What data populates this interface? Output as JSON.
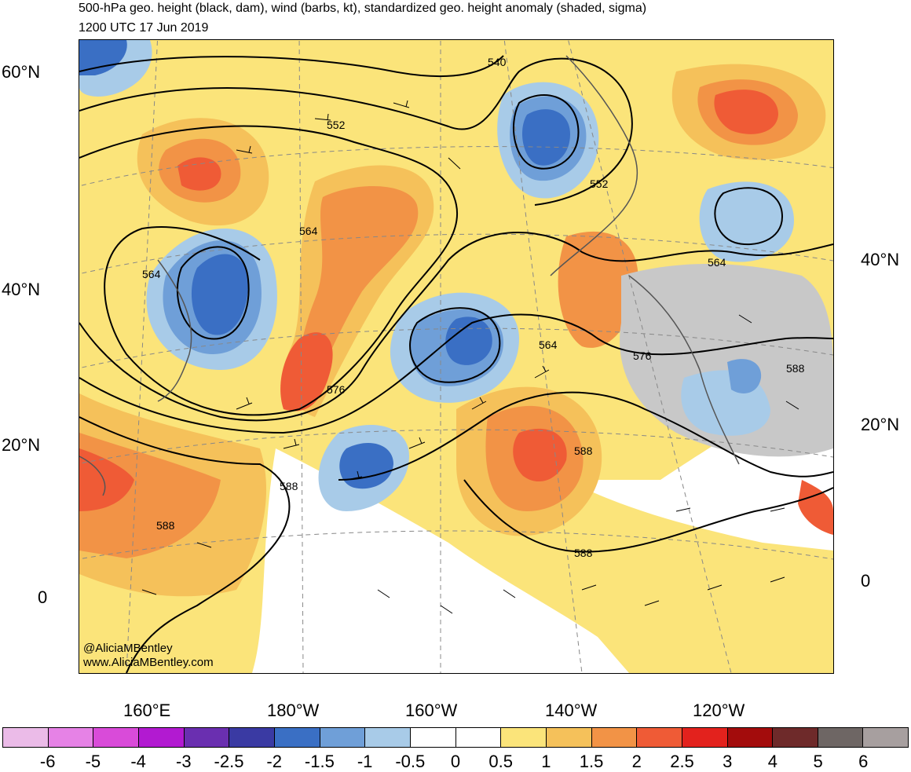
{
  "header": {
    "title": "500-hPa geo. height (black, dam), wind (barbs, kt), standardized geo. height anomaly (shaded, sigma)",
    "valid_time": "1200 UTC 17 Jun 2019"
  },
  "axes": {
    "lat_left": [
      "60°N",
      "40°N",
      "20°N",
      "0"
    ],
    "lat_right": [
      "40°N",
      "20°N",
      "0"
    ],
    "lon_bottom": [
      "160°E",
      "180°W",
      "160°W",
      "140°W",
      "120°W"
    ]
  },
  "contour_labels": [
    "540",
    "552",
    "552",
    "564",
    "564",
    "564",
    "564",
    "576",
    "576",
    "588",
    "588",
    "588",
    "588",
    "588"
  ],
  "credit": {
    "twitter": "@AliciaMBentley",
    "website": "www.AliciaMBentley.com"
  },
  "colorbar": {
    "labels": [
      "-6",
      "-5",
      "-4",
      "-3",
      "-2.5",
      "-2",
      "-1.5",
      "-1",
      "-0.5",
      "0",
      "0.5",
      "1",
      "1.5",
      "2",
      "2.5",
      "3",
      "4",
      "5",
      "6"
    ],
    "colors": [
      "#ebbbe8",
      "#e682e6",
      "#d94bd9",
      "#b21ad1",
      "#6a2fb0",
      "#3a3aa3",
      "#3a6fc4",
      "#6f9fd8",
      "#a8cbe8",
      "#ffffff",
      "#ffffff",
      "#fbe47a",
      "#f5c15a",
      "#f29346",
      "#ef5b36",
      "#e3221d",
      "#a30c0c",
      "#6e2a2a",
      "#6e6664",
      "#a79f9f"
    ]
  },
  "map_colors": {
    "neg_2": "#3a6fc4",
    "neg_1_5": "#6f9fd8",
    "neg_1": "#a8cbe8",
    "near_zero": "#ffffff",
    "pos_0_5": "#fbe47a",
    "pos_1": "#f5c15a",
    "pos_1_5": "#f29346",
    "pos_2": "#ef5b36",
    "over_terrain": "#c8c8c8"
  }
}
